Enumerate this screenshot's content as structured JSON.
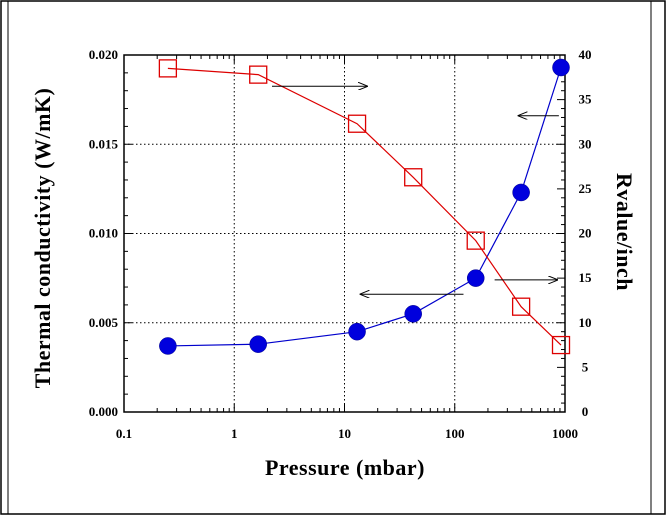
{
  "chart_data": {
    "type": "line",
    "xlabel": "Pressure (mbar)",
    "ylabel_left": "Thermal conductivity (W/mK)",
    "ylabel_right": "Rvalue/inch",
    "x_scale": "log",
    "xlim": [
      0.1,
      1000
    ],
    "ylim_left": [
      0,
      0.02
    ],
    "ylim_right": [
      0,
      40
    ],
    "x_ticks": [
      "0.1",
      "1",
      "10",
      "100",
      "1000"
    ],
    "y_left_ticks": [
      "0.000",
      "0.005",
      "0.010",
      "0.015",
      "0.020"
    ],
    "y_right_ticks": [
      "0",
      "5",
      "10",
      "15",
      "20",
      "25",
      "30",
      "35",
      "40"
    ],
    "grid": true,
    "series": [
      {
        "axis": "left",
        "marker": "filled-circle",
        "color": "#0000cc",
        "marker_color": "#0000dd",
        "x": [
          0.25,
          1.65,
          13,
          42,
          155,
          400,
          920
        ],
        "y": [
          0.0037,
          0.0038,
          0.0045,
          0.0055,
          0.0075,
          0.0123,
          0.0193
        ]
      },
      {
        "axis": "right",
        "marker": "open-square",
        "color": "#dd0000",
        "marker_color": "#dd0000",
        "x": [
          0.25,
          1.65,
          13,
          42,
          155,
          400,
          920
        ],
        "y": [
          38.5,
          37.8,
          32.3,
          26.3,
          19.2,
          11.8,
          7.5
        ]
      }
    ],
    "annotations": [
      {
        "type": "arrow",
        "direction": "right",
        "points_to": "right-axis",
        "x_from": 2.2,
        "x_to": 16,
        "y_right": 36.5
      },
      {
        "type": "arrow",
        "direction": "left",
        "points_to": "left-axis",
        "x_from": 880,
        "x_to": 380,
        "y_left": 0.0166
      },
      {
        "type": "arrow",
        "direction": "left",
        "points_to": "left-axis",
        "x_from": 120,
        "x_to": 14,
        "y_left": 0.0066
      },
      {
        "type": "arrow",
        "direction": "right",
        "points_to": "right-axis",
        "x_from": 230,
        "x_to": 850,
        "y_right": 14.8
      }
    ]
  }
}
